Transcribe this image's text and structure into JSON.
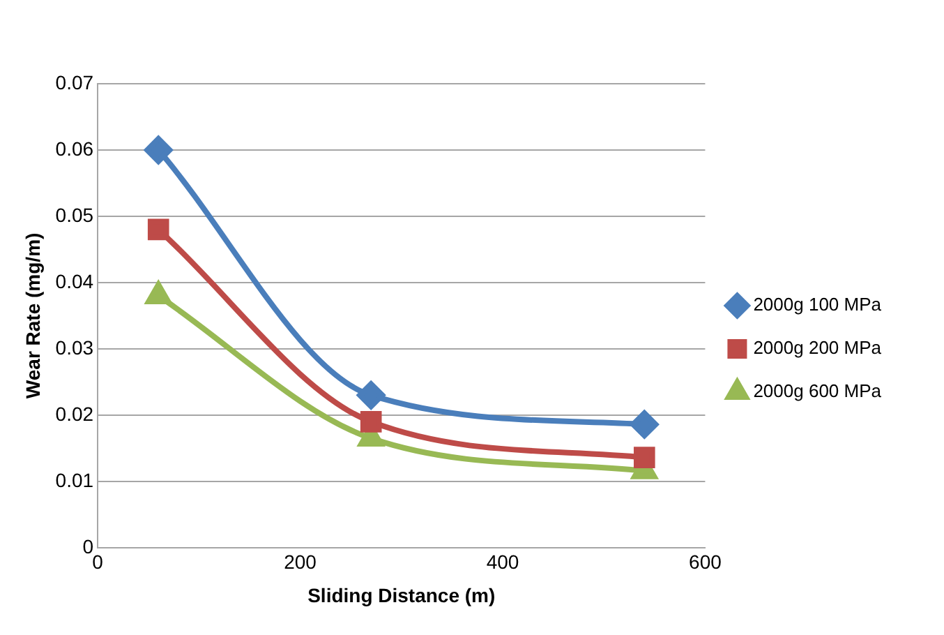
{
  "chart_data": {
    "type": "line",
    "xlabel": "Sliding Distance (m)",
    "ylabel": "Wear Rate (mg/m)",
    "x": [
      60,
      270,
      540
    ],
    "series": [
      {
        "name": "2000g 100 MPa",
        "color": "#4a7ebb",
        "values": [
          0.06,
          0.023,
          0.0186
        ],
        "marker": "diamond"
      },
      {
        "name": "2000g 200 MPa",
        "color": "#be4b48",
        "values": [
          0.048,
          0.019,
          0.0136
        ],
        "marker": "square"
      },
      {
        "name": "2000g 600 MPa",
        "color": "#98b954",
        "values": [
          0.038,
          0.0165,
          0.0116
        ],
        "marker": "triangle"
      }
    ],
    "xlim": [
      0,
      600
    ],
    "xticks": [
      0,
      200,
      400,
      600
    ],
    "ylim": [
      0,
      0.07
    ],
    "yticks": [
      0,
      0.01,
      0.02,
      0.03,
      0.04,
      0.05,
      0.06,
      0.07
    ],
    "grid": "y",
    "legend": "right"
  }
}
